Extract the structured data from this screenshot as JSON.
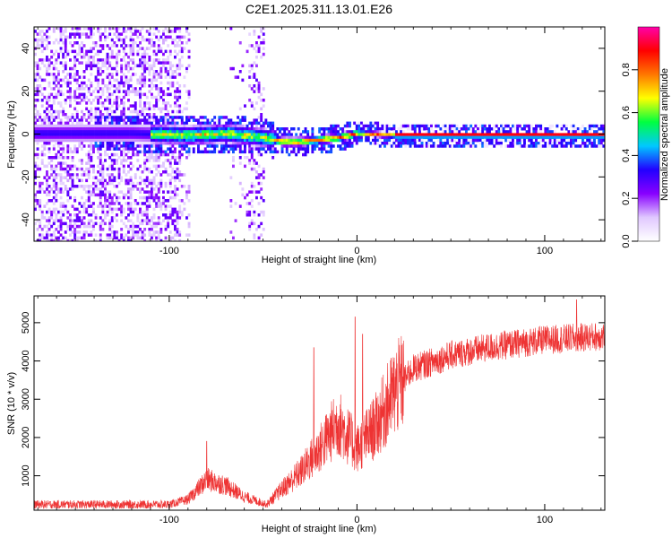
{
  "title": "C2E1.2025.311.13.01.E26",
  "chart_data": [
    {
      "type": "heatmap",
      "xlabel": "Height of straight line (km)",
      "ylabel": "Frequency (Hz)",
      "xlim": [
        -172,
        132
      ],
      "ylim": [
        -50,
        50
      ],
      "xticks": [
        -100,
        0,
        100
      ],
      "yticks": [
        -40,
        -20,
        0,
        20,
        40
      ],
      "colorbar": {
        "label": "Normalized spectral amplitude",
        "range": [
          0,
          1
        ],
        "ticks": [
          0.0,
          0.2,
          0.4,
          0.6,
          0.8
        ],
        "colormap": [
          "#ffffff",
          "#e0c8ff",
          "#8800ff",
          "#2200ff",
          "#00c8ff",
          "#00ff40",
          "#ffff00",
          "#ff7700",
          "#ff0000",
          "#ff00aa"
        ]
      },
      "ridge": {
        "description_points": [
          {
            "x": -120,
            "f": 1
          },
          {
            "x": -90,
            "f": 0
          },
          {
            "x": -70,
            "f": 1
          },
          {
            "x": -50,
            "f": -1
          },
          {
            "x": -40,
            "f": -3
          },
          {
            "x": -30,
            "f": -3
          },
          {
            "x": -20,
            "f": -2
          },
          {
            "x": -10,
            "f": -1
          },
          {
            "x": 0,
            "f": 1
          },
          {
            "x": 20,
            "f": 0
          },
          {
            "x": 132,
            "f": 0
          }
        ]
      }
    },
    {
      "type": "line",
      "xlabel": "Height of straight line (km)",
      "ylabel": "SNR (10 * v/v)",
      "xlim": [
        -172,
        132
      ],
      "ylim": [
        100,
        5700
      ],
      "xticks": [
        -100,
        0,
        100
      ],
      "yticks": [
        1000,
        2000,
        3000,
        4000,
        5000
      ],
      "series": [
        {
          "color": "#ee3333",
          "trend": [
            {
              "x": -172,
              "y": 250
            },
            {
              "x": -100,
              "y": 250
            },
            {
              "x": -90,
              "y": 380
            },
            {
              "x": -80,
              "y": 900
            },
            {
              "x": -70,
              "y": 750
            },
            {
              "x": -60,
              "y": 450
            },
            {
              "x": -48,
              "y": 250
            },
            {
              "x": -40,
              "y": 650
            },
            {
              "x": -30,
              "y": 1100
            },
            {
              "x": -20,
              "y": 1700
            },
            {
              "x": -10,
              "y": 2400
            },
            {
              "x": 0,
              "y": 1700
            },
            {
              "x": 10,
              "y": 2300
            },
            {
              "x": 20,
              "y": 3200
            },
            {
              "x": 30,
              "y": 3800
            },
            {
              "x": 50,
              "y": 4150
            },
            {
              "x": 70,
              "y": 4350
            },
            {
              "x": 100,
              "y": 4550
            },
            {
              "x": 132,
              "y": 4650
            }
          ],
          "spikes": [
            {
              "x": -80,
              "y": 1900
            },
            {
              "x": -23,
              "y": 4350
            },
            {
              "x": -1,
              "y": 5150
            },
            {
              "x": 3,
              "y": 4700
            },
            {
              "x": 117,
              "y": 5600
            }
          ]
        }
      ]
    }
  ]
}
